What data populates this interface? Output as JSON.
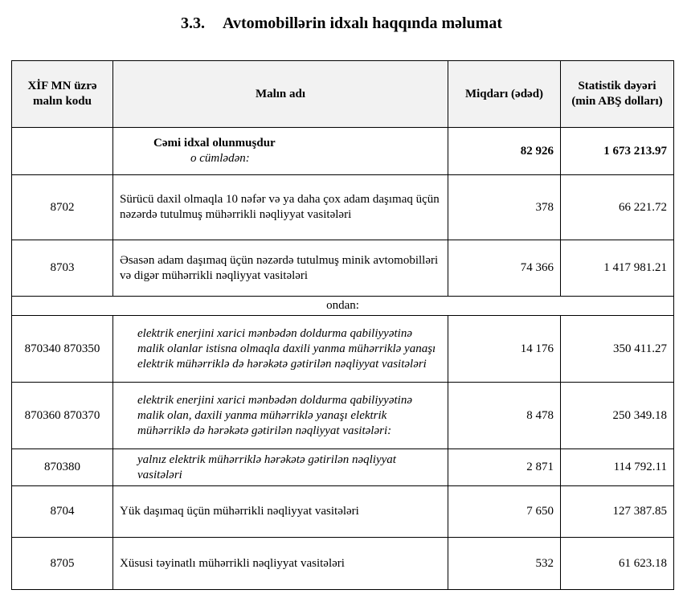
{
  "header": {
    "number": "3.3.",
    "title": "Avtomobillərin idxalı haqqında məlumat"
  },
  "table": {
    "columns": [
      "XİF MN üzrə malın kodu",
      "Malın adı",
      "Miqdarı (ədəd)",
      "Statistik dəyəri (min ABŞ dolları)"
    ],
    "total": {
      "label": "Cəmi idxal olunmuşdur",
      "sublabel": "o cümlədən:",
      "quantity": "82 926",
      "value": "1 673 213.97"
    },
    "rows": [
      {
        "code": "8702",
        "name": "Sürücü daxil olmaqla 10 nəfər və ya daha çox adam daşımaq üçün nəzərdə tutulmuş mühərrikli nəqliyyat vasitələri",
        "quantity": "378",
        "value": "66 221.72",
        "italic": false
      },
      {
        "code": "8703",
        "name": "Əsasən adam daşımaq üçün nəzərdə tutulmuş minik avtomobilləri və digər mühərrikli nəqliyyat vasitələri",
        "quantity": "74 366",
        "value": "1 417 981.21",
        "italic": false
      },
      {
        "note": "ondan:"
      },
      {
        "code": "870340 870350",
        "name": "elektrik enerjini xarici mənbədən doldurma qabiliyyətinə malik olanlar istisna olmaqla daxili yanma mühərriklə yanaşı elektrik mühərriklə də hərəkətə gətirilən nəqliyyat vasitələri",
        "quantity": "14 176",
        "value": "350 411.27",
        "italic": true
      },
      {
        "code": "870360 870370",
        "name": "elektrik enerjini xarici mənbədən doldurma qabiliyyətinə malik olan, daxili yanma mühərriklə yanaşı elektrik mühərriklə də hərəkətə gətirilən nəqliyyat vasitələri:",
        "quantity": "8 478",
        "value": "250 349.18",
        "italic": true
      },
      {
        "code": "870380",
        "name": "yalnız elektrik mühərriklə hərəkətə gətirilən nəqliyyat vasitələri",
        "quantity": "2 871",
        "value": "114 792.11",
        "italic": true
      },
      {
        "code": "8704",
        "name": "Yük daşımaq üçün mühərrikli nəqliyyat vasitələri",
        "quantity": "7 650",
        "value": "127 387.85",
        "italic": false
      },
      {
        "code": "8705",
        "name": "Xüsusi təyinatlı mühərrikli nəqliyyat vasitələri",
        "quantity": "532",
        "value": "61 623.18",
        "italic": false
      }
    ]
  }
}
